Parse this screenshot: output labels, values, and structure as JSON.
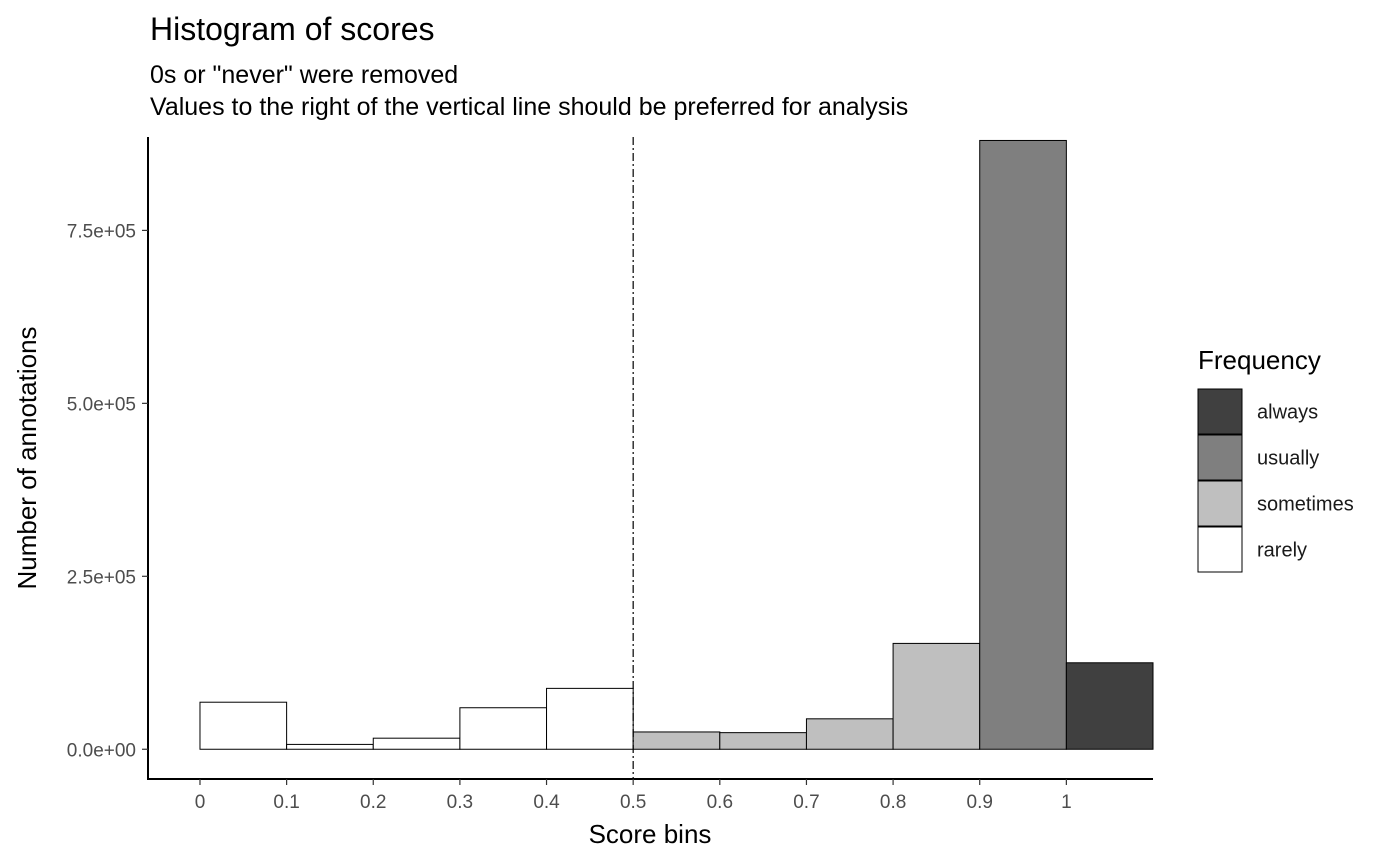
{
  "chart_data": {
    "type": "bar",
    "title": "Histogram of scores",
    "subtitle_lines": [
      "0s or \"never\" were removed",
      "Values to the right of the vertical line should be preferred for analysis"
    ],
    "xlabel": "Score bins",
    "ylabel": "Number of annotations",
    "x_ticks": [
      "0",
      "0.1",
      "0.2",
      "0.3",
      "0.4",
      "0.5",
      "0.6",
      "0.7",
      "0.8",
      "0.9",
      "1"
    ],
    "y_ticks": [
      {
        "value": 0,
        "label": "0.0e+00"
      },
      {
        "value": 250000,
        "label": "2.5e+05"
      },
      {
        "value": 500000,
        "label": "5.0e+05"
      },
      {
        "value": 750000,
        "label": "7.5e+05"
      }
    ],
    "xlim": [
      -0.06,
      1.1
    ],
    "ylim": [
      -43000,
      885000
    ],
    "reference_line_x": 0.5,
    "bins": [
      {
        "x0": 0.0,
        "x1": 0.1,
        "value": 68000,
        "frequency": "rarely"
      },
      {
        "x0": 0.1,
        "x1": 0.2,
        "value": 7000,
        "frequency": "rarely"
      },
      {
        "x0": 0.2,
        "x1": 0.3,
        "value": 16000,
        "frequency": "rarely"
      },
      {
        "x0": 0.3,
        "x1": 0.4,
        "value": 60000,
        "frequency": "rarely"
      },
      {
        "x0": 0.4,
        "x1": 0.5,
        "value": 88000,
        "frequency": "rarely"
      },
      {
        "x0": 0.5,
        "x1": 0.6,
        "value": 25000,
        "frequency": "sometimes"
      },
      {
        "x0": 0.6,
        "x1": 0.7,
        "value": 24000,
        "frequency": "sometimes"
      },
      {
        "x0": 0.7,
        "x1": 0.8,
        "value": 44000,
        "frequency": "sometimes"
      },
      {
        "x0": 0.8,
        "x1": 0.9,
        "value": 153000,
        "frequency": "sometimes"
      },
      {
        "x0": 0.9,
        "x1": 1.0,
        "value": 880000,
        "frequency": "usually"
      },
      {
        "x0": 1.0,
        "x1": 1.1,
        "value": 125000,
        "frequency": "always"
      }
    ],
    "legend": {
      "title": "Frequency",
      "position": "right",
      "items": [
        {
          "key": "always",
          "label": "always",
          "color": "#404040"
        },
        {
          "key": "usually",
          "label": "usually",
          "color": "#7f7f7f"
        },
        {
          "key": "sometimes",
          "label": "sometimes",
          "color": "#bfbfbf"
        },
        {
          "key": "rarely",
          "label": "rarely",
          "color": "#ffffff"
        }
      ]
    },
    "grid": false
  }
}
